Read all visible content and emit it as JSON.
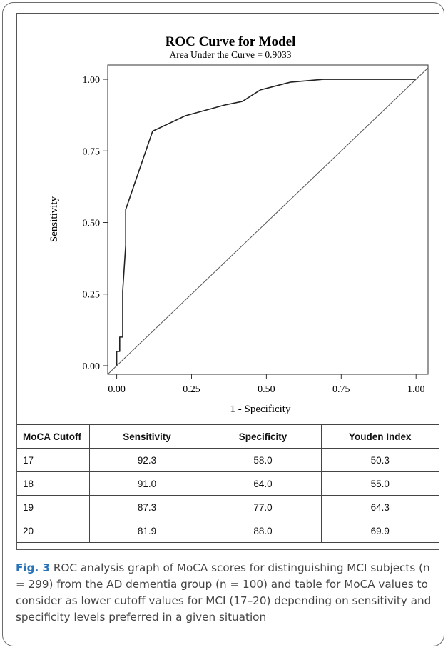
{
  "chart_data": {
    "type": "line",
    "title": "ROC Curve for Model",
    "subtitle": "Area Under the Curve = 0.9033",
    "xlabel": "1 - Specificity",
    "ylabel": "Sensitivity",
    "xlim": [
      -0.03,
      1.04
    ],
    "ylim": [
      -0.03,
      1.05
    ],
    "x_ticks": [
      "0.00",
      "0.25",
      "0.50",
      "0.75",
      "1.00"
    ],
    "y_ticks": [
      "0.00",
      "0.25",
      "0.50",
      "0.75",
      "1.00"
    ],
    "grid": false,
    "series": [
      {
        "x": [
          0.0,
          0.0,
          0.01,
          0.01,
          0.02,
          0.02,
          0.03,
          0.03,
          0.12,
          0.23,
          0.36,
          0.42,
          0.48,
          0.58,
          0.69,
          1.0
        ],
        "y": [
          0.0,
          0.05,
          0.05,
          0.1,
          0.1,
          0.26,
          0.42,
          0.545,
          0.819,
          0.873,
          0.91,
          0.923,
          0.963,
          0.99,
          1.0,
          1.0
        ]
      },
      {
        "x": [
          -0.03,
          1.04
        ],
        "y": [
          -0.03,
          1.04
        ]
      }
    ]
  },
  "table": {
    "headers": [
      "MoCA Cutoff",
      "Sensitivity",
      "Specificity",
      "Youden Index"
    ],
    "rows": [
      [
        "17",
        "92.3",
        "58.0",
        "50.3"
      ],
      [
        "18",
        "91.0",
        "64.0",
        "55.0"
      ],
      [
        "19",
        "87.3",
        "77.0",
        "64.3"
      ],
      [
        "20",
        "81.9",
        "88.0",
        "69.9"
      ]
    ]
  },
  "caption": {
    "label": "Fig. 3",
    "text": " ROC analysis graph of MoCA scores for distinguishing MCI subjects (n = 299) from the AD dementia group (n = 100) and table for MoCA values to consider as lower cutoff values for MCI (17–20) depending on sensitivity and specificity levels preferred in a given situation"
  },
  "colors": {
    "curve": "#222222",
    "caption_label": "#2a73b8",
    "caption_text": "#444444"
  }
}
